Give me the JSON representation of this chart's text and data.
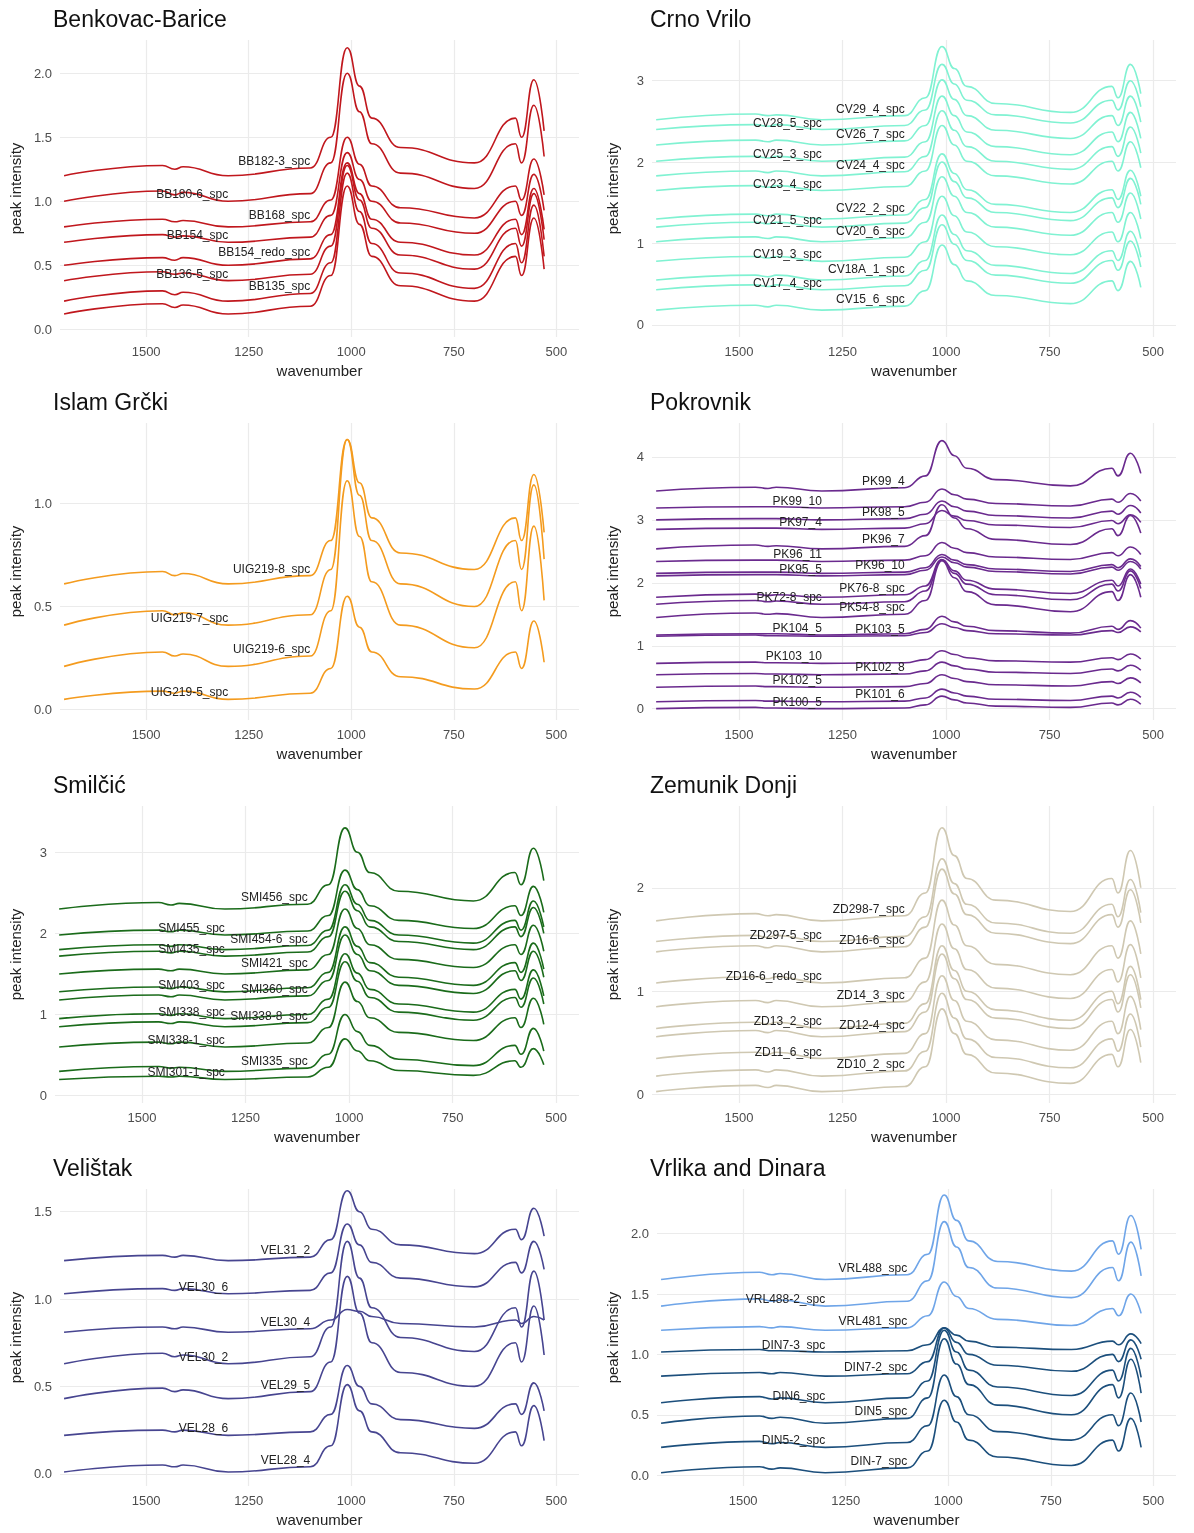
{
  "chart_data": [
    {
      "type": "line",
      "title": "Benkovac-Barice",
      "xlabel": "wavenumber",
      "ylabel": "peak intensity",
      "grid": true,
      "xlim": [
        1710,
        445
      ],
      "xticks": [
        1500,
        1250,
        1000,
        750,
        500
      ],
      "ylim": [
        -0.06,
        2.26
      ],
      "yticks": [
        {
          "value": 0,
          "label": "0.0"
        },
        {
          "value": 0.5,
          "label": "0.5"
        },
        {
          "value": 1,
          "label": "1.0"
        },
        {
          "value": 1.5,
          "label": "1.5"
        },
        {
          "value": 2,
          "label": "2.0"
        }
      ],
      "x": [
        1700,
        1460,
        1430,
        1410,
        1300,
        1100,
        1050,
        1010,
        980,
        950,
        880,
        700,
        600,
        585,
        555,
        530
      ],
      "series": [
        {
          "name": "BB182-3_spc",
          "color": "#c0171d",
          "values": [
            1.2,
            1.28,
            1.25,
            1.27,
            1.2,
            1.26,
            1.5,
            2.2,
            1.9,
            1.65,
            1.42,
            1.3,
            1.65,
            1.5,
            1.95,
            1.55
          ]
        },
        {
          "name": "BB180-6_spc",
          "color": "#c0171d",
          "values": [
            1.0,
            1.08,
            1.05,
            1.07,
            1.0,
            1.06,
            1.3,
            2.0,
            1.7,
            1.45,
            1.22,
            1.1,
            1.45,
            1.3,
            1.75,
            1.35
          ]
        },
        {
          "name": "BB168_spc",
          "color": "#c0171d",
          "values": [
            0.8,
            0.86,
            0.84,
            0.85,
            0.8,
            0.84,
            1.01,
            1.5,
            1.29,
            1.12,
            0.95,
            0.87,
            1.12,
            1.01,
            1.33,
            1.05
          ]
        },
        {
          "name": "BB154_spc",
          "color": "#c0171d",
          "values": [
            0.68,
            0.74,
            0.72,
            0.73,
            0.68,
            0.72,
            0.89,
            1.38,
            1.17,
            1.0,
            0.83,
            0.75,
            1.0,
            0.89,
            1.21,
            0.93
          ]
        },
        {
          "name": "BB154_redo_spc",
          "color": "#c0171d",
          "values": [
            0.5,
            0.56,
            0.54,
            0.56,
            0.5,
            0.55,
            0.74,
            1.3,
            1.06,
            0.86,
            0.68,
            0.58,
            0.86,
            0.74,
            1.1,
            0.78
          ]
        },
        {
          "name": "BB136-5_spc",
          "color": "#c0171d",
          "values": [
            0.38,
            0.45,
            0.43,
            0.44,
            0.38,
            0.43,
            0.65,
            1.28,
            1.01,
            0.79,
            0.58,
            0.47,
            0.79,
            0.65,
            1.06,
            0.7
          ]
        },
        {
          "name": "BB135_spc",
          "color": "#c0171d",
          "values": [
            0.22,
            0.3,
            0.27,
            0.29,
            0.22,
            0.28,
            0.52,
            1.22,
            0.92,
            0.67,
            0.44,
            0.32,
            0.67,
            0.52,
            0.97,
            0.57
          ]
        },
        {
          "color": "#c0171d",
          "values": [
            0.12,
            0.2,
            0.17,
            0.19,
            0.12,
            0.18,
            0.42,
            1.12,
            0.82,
            0.57,
            0.34,
            0.22,
            0.57,
            0.42,
            0.87,
            0.47
          ]
        }
      ]
    },
    {
      "type": "line",
      "title": "Crno Vrilo",
      "xlabel": "wavenumber",
      "ylabel": "peak intensity",
      "grid": true,
      "xlim": [
        1710,
        445
      ],
      "xticks": [
        1500,
        1250,
        1000,
        750,
        500
      ],
      "ylim": [
        -0.15,
        3.5
      ],
      "yticks": [
        0,
        1,
        2,
        3
      ],
      "x": [
        1700,
        1460,
        1430,
        1410,
        1300,
        1100,
        1050,
        1010,
        980,
        950,
        880,
        700,
        600,
        585,
        555,
        530
      ],
      "series": [
        {
          "name": "CV29_4_spc",
          "color": "#80f2d2",
          "values": [
            2.52,
            2.59,
            2.57,
            2.58,
            2.52,
            2.57,
            2.79,
            3.42,
            3.15,
            2.93,
            2.72,
            2.61,
            2.93,
            2.79,
            3.2,
            2.84
          ]
        },
        {
          "name": "CV28_5_spc",
          "color": "#80f2d2",
          "values": [
            2.4,
            2.46,
            2.44,
            2.46,
            2.4,
            2.45,
            2.64,
            3.2,
            2.96,
            2.76,
            2.58,
            2.48,
            2.76,
            2.64,
            3.0,
            2.68
          ]
        },
        {
          "name": "CV26_7_spc",
          "color": "#80f2d2",
          "values": [
            2.21,
            2.27,
            2.25,
            2.27,
            2.21,
            2.26,
            2.45,
            3.01,
            2.77,
            2.57,
            2.39,
            2.29,
            2.57,
            2.45,
            2.81,
            2.49
          ]
        },
        {
          "name": "CV25_3_spc",
          "color": "#80f2d2",
          "values": [
            2.01,
            2.07,
            2.05,
            2.07,
            2.01,
            2.06,
            2.25,
            2.81,
            2.57,
            2.37,
            2.19,
            2.09,
            2.37,
            2.25,
            2.61,
            2.29
          ]
        },
        {
          "name": "CV24_4_spc",
          "color": "#80f2d2",
          "values": [
            1.83,
            1.89,
            1.87,
            1.89,
            1.83,
            1.88,
            2.07,
            2.63,
            2.39,
            2.19,
            2.01,
            1.91,
            2.19,
            2.07,
            2.43,
            2.11
          ]
        },
        {
          "name": "CV23_4_spc",
          "color": "#80f2d2",
          "values": [
            1.65,
            1.71,
            1.69,
            1.71,
            1.65,
            1.7,
            1.89,
            2.45,
            2.21,
            2.01,
            1.83,
            1.73,
            2.01,
            1.89,
            2.25,
            1.93
          ]
        },
        {
          "name": "CV22_2_spc",
          "color": "#80f2d2",
          "values": [
            1.3,
            1.36,
            1.34,
            1.36,
            1.3,
            1.35,
            1.54,
            2.1,
            1.86,
            1.66,
            1.48,
            1.38,
            1.66,
            1.54,
            1.9,
            1.58
          ]
        },
        {
          "name": "CV21_5_spc",
          "color": "#80f2d2",
          "values": [
            1.2,
            1.26,
            1.24,
            1.26,
            1.2,
            1.25,
            1.44,
            2.0,
            1.76,
            1.56,
            1.38,
            1.28,
            1.56,
            1.44,
            1.8,
            1.48
          ]
        },
        {
          "name": "CV20_6_spc",
          "color": "#80f2d2",
          "values": [
            1.02,
            1.08,
            1.06,
            1.08,
            1.02,
            1.07,
            1.26,
            1.82,
            1.58,
            1.38,
            1.2,
            1.1,
            1.38,
            1.26,
            1.62,
            1.3
          ]
        },
        {
          "name": "CV19_3_spc",
          "color": "#80f2d2",
          "values": [
            0.78,
            0.84,
            0.82,
            0.84,
            0.78,
            0.83,
            1.02,
            1.58,
            1.34,
            1.14,
            0.96,
            0.86,
            1.14,
            1.02,
            1.38,
            1.06
          ]
        },
        {
          "name": "CV18A_1_spc",
          "color": "#80f2d2",
          "values": [
            0.55,
            0.61,
            0.59,
            0.61,
            0.55,
            0.6,
            0.79,
            1.35,
            1.11,
            0.91,
            0.73,
            0.63,
            0.91,
            0.79,
            1.15,
            0.83
          ]
        },
        {
          "name": "CV17_4_spc",
          "color": "#80f2d2",
          "values": [
            0.43,
            0.49,
            0.47,
            0.49,
            0.43,
            0.48,
            0.67,
            1.23,
            0.99,
            0.79,
            0.61,
            0.51,
            0.79,
            0.67,
            1.03,
            0.71
          ]
        },
        {
          "name": "CV15_6_spc",
          "color": "#80f2d2",
          "values": [
            0.18,
            0.24,
            0.22,
            0.24,
            0.18,
            0.23,
            0.42,
            0.98,
            0.74,
            0.54,
            0.36,
            0.26,
            0.54,
            0.42,
            0.78,
            0.46
          ]
        }
      ]
    },
    {
      "type": "line",
      "title": "Islam Grčki",
      "xlabel": "wavenumber",
      "ylabel": "peak intensity",
      "grid": true,
      "xlim": [
        1710,
        445
      ],
      "xticks": [
        1500,
        1250,
        1000,
        750,
        500
      ],
      "ylim": [
        -0.05,
        1.39
      ],
      "yticks": [
        {
          "value": 0,
          "label": "0.0"
        },
        {
          "value": 0.5,
          "label": "0.5"
        },
        {
          "value": 1,
          "label": "1.0"
        }
      ],
      "x": [
        1700,
        1460,
        1430,
        1410,
        1300,
        1100,
        1050,
        1010,
        980,
        950,
        880,
        700,
        600,
        585,
        555,
        530
      ],
      "series": [
        {
          "name": "UIG219-8_spc",
          "color": "#f49b1e",
          "values": [
            0.61,
            0.67,
            0.65,
            0.66,
            0.61,
            0.65,
            0.82,
            1.31,
            1.1,
            0.93,
            0.76,
            0.68,
            0.93,
            0.82,
            1.14,
            0.86
          ]
        },
        {
          "name": "UIG219-7_spc",
          "color": "#f49b1e",
          "values": [
            0.41,
            0.48,
            0.46,
            0.47,
            0.41,
            0.46,
            0.68,
            1.31,
            1.04,
            0.82,
            0.61,
            0.5,
            0.82,
            0.68,
            1.09,
            0.73
          ]
        },
        {
          "name": "UIG219-6_spc",
          "color": "#f49b1e",
          "values": [
            0.21,
            0.28,
            0.26,
            0.27,
            0.21,
            0.26,
            0.48,
            1.11,
            0.84,
            0.62,
            0.41,
            0.3,
            0.62,
            0.48,
            0.89,
            0.53
          ]
        },
        {
          "name": "UIG219-5_spc",
          "color": "#f49b1e",
          "values": [
            0.05,
            0.09,
            0.08,
            0.09,
            0.05,
            0.08,
            0.2,
            0.55,
            0.4,
            0.28,
            0.16,
            0.1,
            0.28,
            0.2,
            0.43,
            0.23
          ]
        }
      ]
    },
    {
      "type": "line",
      "title": "Pokrovnik",
      "xlabel": "wavenumber",
      "ylabel": "peak intensity",
      "grid": true,
      "xlim": [
        1710,
        445
      ],
      "xticks": [
        1500,
        1250,
        1000,
        750,
        500
      ],
      "ylim": [
        -0.18,
        4.54
      ],
      "yticks": [
        0,
        1,
        2,
        3,
        4
      ],
      "x": [
        1700,
        1460,
        1430,
        1410,
        1300,
        1100,
        1050,
        1010,
        980,
        950,
        880,
        700,
        600,
        585,
        555,
        530
      ],
      "series": [
        {
          "name": "PK99_4",
          "color": "#6a2a8e",
          "values": [
            3.46,
            3.52,
            3.5,
            3.52,
            3.46,
            3.51,
            3.7,
            4.26,
            4.02,
            3.82,
            3.64,
            3.54,
            3.82,
            3.7,
            4.06,
            3.74
          ]
        },
        {
          "name": "PK99_10",
          "color": "#6a2a8e",
          "values": [
            3.19,
            3.21,
            3.21,
            3.21,
            3.19,
            3.21,
            3.28,
            3.49,
            3.4,
            3.33,
            3.26,
            3.22,
            3.33,
            3.28,
            3.42,
            3.3
          ]
        },
        {
          "name": "PK98_5",
          "color": "#6a2a8e",
          "values": [
            3.0,
            3.02,
            3.02,
            3.02,
            3.0,
            3.02,
            3.09,
            3.3,
            3.21,
            3.14,
            3.07,
            3.03,
            3.14,
            3.09,
            3.23,
            3.11
          ]
        },
        {
          "name": "PK97_4",
          "color": "#6a2a8e",
          "values": [
            2.85,
            2.87,
            2.87,
            2.87,
            2.85,
            2.87,
            2.94,
            3.15,
            3.06,
            2.99,
            2.92,
            2.88,
            2.99,
            2.94,
            3.08,
            2.96
          ]
        },
        {
          "name": "PK96_7",
          "color": "#6a2a8e",
          "values": [
            2.54,
            2.6,
            2.58,
            2.59,
            2.54,
            2.58,
            2.75,
            3.24,
            3.03,
            2.86,
            2.69,
            2.61,
            2.86,
            2.75,
            3.07,
            2.79
          ]
        },
        {
          "name": "PK96_11",
          "color": "#6a2a8e",
          "values": [
            2.34,
            2.36,
            2.36,
            2.36,
            2.34,
            2.36,
            2.43,
            2.64,
            2.55,
            2.48,
            2.41,
            2.37,
            2.48,
            2.43,
            2.57,
            2.45
          ]
        },
        {
          "name": "PK96_10",
          "color": "#6a2a8e",
          "values": [
            2.15,
            2.17,
            2.17,
            2.17,
            2.15,
            2.17,
            2.24,
            2.45,
            2.36,
            2.29,
            2.22,
            2.18,
            2.29,
            2.24,
            2.38,
            2.26
          ]
        },
        {
          "name": "PK95_5",
          "color": "#6a2a8e",
          "values": [
            2.11,
            2.13,
            2.13,
            2.13,
            2.11,
            2.13,
            2.2,
            2.41,
            2.32,
            2.25,
            2.18,
            2.14,
            2.25,
            2.2,
            2.34,
            2.22
          ]
        },
        {
          "name": "PK76-8_spc",
          "color": "#6a2a8e",
          "values": [
            1.77,
            1.82,
            1.8,
            1.81,
            1.77,
            1.81,
            1.95,
            2.37,
            2.19,
            2.04,
            1.9,
            1.83,
            2.04,
            1.95,
            2.22,
            1.98
          ]
        },
        {
          "name": "PK72-8_spc",
          "color": "#6a2a8e",
          "values": [
            1.66,
            1.72,
            1.7,
            1.71,
            1.66,
            1.7,
            1.87,
            2.36,
            2.15,
            1.98,
            1.81,
            1.73,
            1.98,
            1.87,
            2.19,
            1.91
          ]
        },
        {
          "name": "PK54-8_spc",
          "color": "#6a2a8e",
          "values": [
            1.45,
            1.52,
            1.5,
            1.51,
            1.45,
            1.5,
            1.72,
            2.35,
            2.08,
            1.86,
            1.65,
            1.54,
            1.86,
            1.72,
            2.13,
            1.77
          ]
        },
        {
          "name": "PK104_5",
          "color": "#6a2a8e",
          "values": [
            1.17,
            1.19,
            1.19,
            1.19,
            1.17,
            1.19,
            1.26,
            1.47,
            1.38,
            1.31,
            1.24,
            1.2,
            1.31,
            1.26,
            1.4,
            1.28
          ]
        },
        {
          "name": "PK103_5",
          "color": "#6a2a8e",
          "values": [
            1.15,
            1.17,
            1.16,
            1.16,
            1.15,
            1.16,
            1.21,
            1.35,
            1.29,
            1.24,
            1.19,
            1.17,
            1.24,
            1.21,
            1.3,
            1.22
          ]
        },
        {
          "name": "PK103_10",
          "color": "#6a2a8e",
          "values": [
            0.72,
            0.74,
            0.73,
            0.73,
            0.72,
            0.73,
            0.78,
            0.92,
            0.86,
            0.81,
            0.76,
            0.74,
            0.81,
            0.78,
            0.87,
            0.79
          ]
        },
        {
          "name": "PK102_8",
          "color": "#6a2a8e",
          "values": [
            0.54,
            0.56,
            0.55,
            0.55,
            0.54,
            0.55,
            0.6,
            0.74,
            0.68,
            0.63,
            0.58,
            0.56,
            0.63,
            0.6,
            0.69,
            0.61
          ]
        },
        {
          "name": "PK102_5",
          "color": "#6a2a8e",
          "values": [
            0.34,
            0.36,
            0.35,
            0.35,
            0.34,
            0.35,
            0.4,
            0.54,
            0.48,
            0.43,
            0.38,
            0.36,
            0.43,
            0.4,
            0.49,
            0.41
          ]
        },
        {
          "name": "PK101_6",
          "color": "#6a2a8e",
          "values": [
            0.11,
            0.13,
            0.12,
            0.12,
            0.11,
            0.12,
            0.17,
            0.31,
            0.25,
            0.2,
            0.15,
            0.13,
            0.2,
            0.17,
            0.26,
            0.18
          ]
        },
        {
          "name": "PK100_5",
          "color": "#6a2a8e",
          "values": [
            0,
            0.02,
            0.01,
            0.01,
            0,
            0.01,
            0.06,
            0.2,
            0.14,
            0.09,
            0.04,
            0.02,
            0.09,
            0.06,
            0.15,
            0.07
          ]
        }
      ]
    },
    {
      "type": "line",
      "title": "Smilčić",
      "xlabel": "wavenumber",
      "ylabel": "peak intensity",
      "grid": true,
      "xlim": [
        1710,
        445
      ],
      "xticks": [
        1500,
        1250,
        1000,
        750,
        500
      ],
      "ylim": [
        -0.09,
        3.57
      ],
      "yticks": [
        0,
        1,
        2,
        3
      ],
      "x": [
        1700,
        1460,
        1430,
        1410,
        1300,
        1100,
        1050,
        1010,
        980,
        950,
        880,
        700,
        600,
        585,
        555,
        530
      ],
      "series": [
        {
          "name": "SMI456_spc",
          "color": "#1a6b1a",
          "values": [
            2.3,
            2.38,
            2.35,
            2.37,
            2.3,
            2.36,
            2.6,
            3.3,
            3.0,
            2.75,
            2.52,
            2.4,
            2.75,
            2.6,
            3.05,
            2.65
          ]
        },
        {
          "name": "SMI455_spc",
          "color": "#1a6b1a",
          "values": [
            1.98,
            2.04,
            2.02,
            2.04,
            1.98,
            2.03,
            2.22,
            2.78,
            2.54,
            2.34,
            2.16,
            2.06,
            2.34,
            2.22,
            2.58,
            2.26
          ]
        },
        {
          "name": "SMI454-6_spc",
          "color": "#1a6b1a",
          "values": [
            1.8,
            1.86,
            1.84,
            1.86,
            1.8,
            1.85,
            2.04,
            2.6,
            2.36,
            2.16,
            1.98,
            1.88,
            2.16,
            2.04,
            2.4,
            2.08
          ]
        },
        {
          "name": "SMI435_spc",
          "color": "#1a6b1a",
          "values": [
            1.72,
            1.78,
            1.76,
            1.78,
            1.72,
            1.77,
            1.96,
            2.52,
            2.28,
            2.08,
            1.9,
            1.8,
            2.08,
            1.96,
            2.32,
            2.0
          ]
        },
        {
          "name": "SMI421_spc",
          "color": "#1a6b1a",
          "values": [
            1.5,
            1.56,
            1.54,
            1.56,
            1.5,
            1.55,
            1.74,
            2.3,
            2.06,
            1.86,
            1.68,
            1.58,
            1.86,
            1.74,
            2.1,
            1.78
          ]
        },
        {
          "name": "SMI403_spc",
          "color": "#1a6b1a",
          "values": [
            1.28,
            1.34,
            1.32,
            1.34,
            1.28,
            1.33,
            1.52,
            2.08,
            1.84,
            1.64,
            1.46,
            1.36,
            1.64,
            1.52,
            1.88,
            1.56
          ]
        },
        {
          "name": "SMI360_spc",
          "color": "#1a6b1a",
          "values": [
            1.18,
            1.24,
            1.22,
            1.24,
            1.18,
            1.23,
            1.42,
            1.98,
            1.74,
            1.54,
            1.36,
            1.26,
            1.54,
            1.42,
            1.78,
            1.46
          ]
        },
        {
          "name": "SMI338_spc",
          "color": "#1a6b1a",
          "values": [
            0.95,
            1.01,
            0.99,
            1.01,
            0.95,
            1.0,
            1.19,
            1.75,
            1.51,
            1.31,
            1.13,
            1.03,
            1.31,
            1.19,
            1.55,
            1.23
          ]
        },
        {
          "name": "SMI338-8_spc",
          "color": "#1a6b1a",
          "values": [
            0.85,
            0.91,
            0.89,
            0.91,
            0.85,
            0.9,
            1.09,
            1.65,
            1.41,
            1.21,
            1.03,
            0.93,
            1.21,
            1.09,
            1.45,
            1.13
          ]
        },
        {
          "name": "SMI338-1_spc",
          "color": "#1a6b1a",
          "values": [
            0.6,
            0.66,
            0.64,
            0.66,
            0.6,
            0.65,
            0.84,
            1.4,
            1.16,
            0.96,
            0.78,
            0.68,
            0.96,
            0.84,
            1.2,
            0.88
          ]
        },
        {
          "name": "SMI335_spc",
          "color": "#1a6b1a",
          "values": [
            0.3,
            0.36,
            0.34,
            0.35,
            0.3,
            0.34,
            0.51,
            1.0,
            0.79,
            0.62,
            0.45,
            0.37,
            0.62,
            0.51,
            0.83,
            0.55
          ]
        },
        {
          "name": "SMI301-1_spc",
          "color": "#1a6b1a",
          "values": [
            0.2,
            0.24,
            0.23,
            0.24,
            0.2,
            0.23,
            0.35,
            0.7,
            0.55,
            0.43,
            0.31,
            0.25,
            0.43,
            0.35,
            0.58,
            0.38
          ]
        }
      ]
    },
    {
      "type": "line",
      "title": "Zemunik Donji",
      "xlabel": "wavenumber",
      "ylabel": "peak intensity",
      "grid": true,
      "xlim": [
        1710,
        445
      ],
      "xticks": [
        1500,
        1250,
        1000,
        750,
        500
      ],
      "ylim": [
        -0.08,
        2.79
      ],
      "yticks": [
        0,
        1,
        2
      ],
      "x": [
        1700,
        1460,
        1430,
        1410,
        1300,
        1100,
        1050,
        1010,
        980,
        950,
        880,
        700,
        600,
        585,
        555,
        530
      ],
      "series": [
        {
          "name": "ZD298-7_spc",
          "color": "#cfc8b2",
          "values": [
            1.68,
            1.75,
            1.73,
            1.74,
            1.68,
            1.73,
            1.95,
            2.58,
            2.31,
            2.09,
            1.88,
            1.77,
            2.09,
            1.95,
            2.36,
            2.0
          ]
        },
        {
          "name": "ZD297-5_spc",
          "color": "#cfc8b2",
          "values": [
            1.48,
            1.54,
            1.52,
            1.54,
            1.48,
            1.53,
            1.72,
            2.28,
            2.04,
            1.84,
            1.66,
            1.56,
            1.84,
            1.72,
            2.08,
            1.76
          ]
        },
        {
          "name": "ZD16-6_spc",
          "color": "#cfc8b2",
          "values": [
            1.38,
            1.44,
            1.42,
            1.44,
            1.38,
            1.43,
            1.62,
            2.18,
            1.94,
            1.74,
            1.56,
            1.46,
            1.74,
            1.62,
            1.98,
            1.66
          ]
        },
        {
          "name": "ZD16-6_redo_spc",
          "color": "#cfc8b2",
          "values": [
            1.08,
            1.14,
            1.12,
            1.14,
            1.08,
            1.13,
            1.32,
            1.88,
            1.64,
            1.44,
            1.26,
            1.16,
            1.44,
            1.32,
            1.68,
            1.36
          ]
        },
        {
          "name": "ZD14_3_spc",
          "color": "#cfc8b2",
          "values": [
            0.85,
            0.91,
            0.89,
            0.91,
            0.85,
            0.9,
            1.09,
            1.65,
            1.41,
            1.21,
            1.03,
            0.93,
            1.21,
            1.09,
            1.45,
            1.13
          ]
        },
        {
          "name": "ZD13_2_spc",
          "color": "#cfc8b2",
          "values": [
            0.64,
            0.7,
            0.68,
            0.7,
            0.64,
            0.69,
            0.88,
            1.44,
            1.2,
            1.0,
            0.82,
            0.72,
            1.0,
            0.88,
            1.24,
            0.92
          ]
        },
        {
          "name": "ZD12-4_spc",
          "color": "#cfc8b2",
          "values": [
            0.56,
            0.62,
            0.6,
            0.62,
            0.56,
            0.61,
            0.8,
            1.36,
            1.12,
            0.92,
            0.74,
            0.64,
            0.92,
            0.8,
            1.16,
            0.84
          ]
        },
        {
          "name": "ZD11_6_spc",
          "color": "#cfc8b2",
          "values": [
            0.35,
            0.41,
            0.39,
            0.41,
            0.35,
            0.4,
            0.59,
            1.15,
            0.91,
            0.71,
            0.53,
            0.43,
            0.71,
            0.59,
            0.95,
            0.63
          ]
        },
        {
          "name": "ZD10_2_spc",
          "color": "#cfc8b2",
          "values": [
            0.18,
            0.24,
            0.22,
            0.24,
            0.18,
            0.23,
            0.42,
            0.98,
            0.74,
            0.54,
            0.36,
            0.26,
            0.54,
            0.42,
            0.78,
            0.46
          ]
        },
        {
          "color": "#cfc8b2",
          "values": [
            0.03,
            0.09,
            0.07,
            0.09,
            0.03,
            0.08,
            0.27,
            0.83,
            0.59,
            0.39,
            0.21,
            0.11,
            0.39,
            0.27,
            0.63,
            0.31
          ]
        }
      ]
    },
    {
      "type": "line",
      "title": "Velištak",
      "xlabel": "wavenumber",
      "ylabel": "peak intensity",
      "grid": true,
      "xlim": [
        1710,
        445
      ],
      "xticks": [
        1500,
        1250,
        1000,
        750,
        500
      ],
      "ylim": [
        -0.07,
        1.63
      ],
      "yticks": [
        {
          "value": 0,
          "label": "0.0"
        },
        {
          "value": 0.5,
          "label": "0.5"
        },
        {
          "value": 1,
          "label": "1.0"
        },
        {
          "value": 1.5,
          "label": "1.5"
        }
      ],
      "x": [
        1700,
        1460,
        1430,
        1410,
        1300,
        1100,
        1050,
        1010,
        980,
        950,
        880,
        700,
        600,
        585,
        555,
        530
      ],
      "series": [
        {
          "name": "VEL31_2",
          "color": "#474590",
          "values": [
            1.22,
            1.25,
            1.24,
            1.25,
            1.22,
            1.24,
            1.34,
            1.62,
            1.5,
            1.4,
            1.31,
            1.26,
            1.4,
            1.34,
            1.52,
            1.36
          ]
        },
        {
          "name": "VEL30_6",
          "color": "#474590",
          "values": [
            1.03,
            1.06,
            1.05,
            1.06,
            1.03,
            1.05,
            1.15,
            1.43,
            1.31,
            1.21,
            1.12,
            1.07,
            1.21,
            1.15,
            1.33,
            1.17
          ]
        },
        {
          "name": "VEL30_4",
          "color": "#474590",
          "values": [
            0.81,
            0.84,
            0.83,
            0.84,
            0.81,
            0.83,
            0.88,
            0.94,
            0.93,
            0.9,
            0.86,
            0.84,
            0.88,
            0.86,
            0.9,
            0.88
          ]
        },
        {
          "name": "VEL30_2",
          "color": "#474590",
          "values": [
            0.63,
            0.69,
            0.67,
            0.68,
            0.63,
            0.67,
            0.84,
            1.33,
            1.12,
            0.95,
            0.78,
            0.7,
            0.95,
            0.84,
            1.16,
            0.88
          ]
        },
        {
          "name": "VEL29_5",
          "color": "#474590",
          "values": [
            0.43,
            0.49,
            0.47,
            0.48,
            0.43,
            0.47,
            0.64,
            1.13,
            0.92,
            0.75,
            0.58,
            0.5,
            0.75,
            0.64,
            0.96,
            0.68
          ]
        },
        {
          "name": "VEL28_6",
          "color": "#474590",
          "values": [
            0.22,
            0.25,
            0.24,
            0.25,
            0.22,
            0.24,
            0.34,
            0.62,
            0.5,
            0.4,
            0.31,
            0.26,
            0.4,
            0.34,
            0.52,
            0.36
          ]
        },
        {
          "name": "VEL28_4",
          "color": "#474590",
          "values": [
            0.01,
            0.05,
            0.04,
            0.05,
            0.01,
            0.04,
            0.16,
            0.51,
            0.36,
            0.24,
            0.12,
            0.06,
            0.24,
            0.16,
            0.39,
            0.19
          ]
        }
      ]
    },
    {
      "type": "line",
      "title": "Vrlika and Dinara",
      "xlabel": "wavenumber",
      "ylabel": "peak intensity",
      "grid": true,
      "xlim": [
        1710,
        445
      ],
      "xticks": [
        1500,
        1250,
        1000,
        750,
        500
      ],
      "ylim": [
        -0.09,
        2.37
      ],
      "yticks": [
        {
          "value": 0,
          "label": "0.0"
        },
        {
          "value": 0.5,
          "label": "0.5"
        },
        {
          "value": 1,
          "label": "1.0"
        },
        {
          "value": 1.5,
          "label": "1.5"
        },
        {
          "value": 2,
          "label": "2.0"
        }
      ],
      "x": [
        1700,
        1460,
        1430,
        1410,
        1300,
        1100,
        1050,
        1010,
        980,
        950,
        880,
        700,
        600,
        585,
        555,
        530
      ],
      "series": [
        {
          "name": "VRL488_spc",
          "color": "#6fa5e8",
          "values": [
            1.62,
            1.68,
            1.66,
            1.67,
            1.62,
            1.66,
            1.83,
            2.32,
            2.11,
            1.94,
            1.77,
            1.69,
            1.94,
            1.83,
            2.15,
            1.87
          ]
        },
        {
          "name": "VRL488-2_spc",
          "color": "#6fa5e8",
          "values": [
            1.4,
            1.46,
            1.44,
            1.45,
            1.4,
            1.44,
            1.61,
            2.1,
            1.89,
            1.72,
            1.55,
            1.47,
            1.72,
            1.61,
            1.93,
            1.65
          ]
        },
        {
          "name": "VRL481_spc",
          "color": "#6fa5e8",
          "values": [
            1.2,
            1.23,
            1.22,
            1.23,
            1.2,
            1.22,
            1.32,
            1.6,
            1.48,
            1.38,
            1.29,
            1.24,
            1.38,
            1.32,
            1.5,
            1.34
          ]
        },
        {
          "name": "DIN7-3_spc",
          "color": "#1c4f7c",
          "values": [
            1.02,
            1.04,
            1.03,
            1.03,
            1.02,
            1.03,
            1.08,
            1.22,
            1.16,
            1.11,
            1.06,
            1.04,
            1.11,
            1.08,
            1.17,
            1.09
          ]
        },
        {
          "name": "DIN7-2_spc",
          "color": "#1c4f7c",
          "values": [
            0.82,
            0.85,
            0.84,
            0.85,
            0.82,
            0.84,
            0.94,
            1.22,
            1.1,
            1.0,
            0.91,
            0.86,
            1.0,
            0.94,
            1.12,
            0.96
          ]
        },
        {
          "name": "DIN6_spc",
          "color": "#1c4f7c",
          "values": [
            0.6,
            0.65,
            0.63,
            0.64,
            0.6,
            0.64,
            0.78,
            1.2,
            1.02,
            0.87,
            0.73,
            0.66,
            0.87,
            0.78,
            1.05,
            0.81
          ]
        },
        {
          "name": "DIN5_spc",
          "color": "#1c4f7c",
          "values": [
            0.43,
            0.49,
            0.47,
            0.48,
            0.43,
            0.47,
            0.64,
            1.13,
            0.92,
            0.75,
            0.58,
            0.5,
            0.75,
            0.64,
            0.96,
            0.68
          ]
        },
        {
          "name": "DIN5-2_spc",
          "color": "#1c4f7c",
          "values": [
            0.23,
            0.28,
            0.26,
            0.27,
            0.23,
            0.27,
            0.41,
            0.83,
            0.65,
            0.5,
            0.36,
            0.29,
            0.5,
            0.41,
            0.68,
            0.44
          ]
        },
        {
          "name": "DIN-7_spc",
          "color": "#1c4f7c",
          "values": [
            0.02,
            0.07,
            0.05,
            0.06,
            0.02,
            0.06,
            0.2,
            0.62,
            0.44,
            0.29,
            0.15,
            0.08,
            0.29,
            0.2,
            0.47,
            0.23
          ]
        }
      ]
    }
  ]
}
